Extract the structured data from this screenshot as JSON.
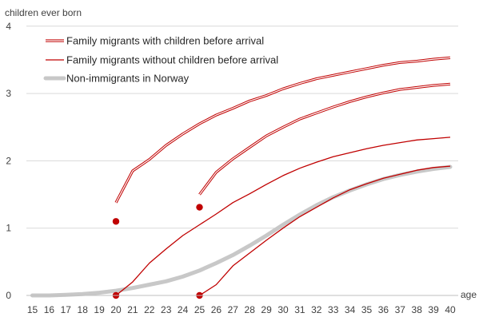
{
  "chart_data": {
    "type": "line",
    "ylabel": "children ever born",
    "xlabel": "age",
    "ylim": [
      0,
      4
    ],
    "yticks": [
      "0",
      "1",
      "2",
      "3",
      "4"
    ],
    "x": [
      15,
      16,
      17,
      18,
      19,
      20,
      21,
      22,
      23,
      24,
      25,
      26,
      27,
      28,
      29,
      30,
      31,
      32,
      33,
      34,
      35,
      36,
      37,
      38,
      39,
      40
    ],
    "xticks": [
      "15",
      "16",
      "17",
      "18",
      "19",
      "20",
      "21",
      "22",
      "23",
      "24",
      "25",
      "26",
      "27",
      "28",
      "29",
      "30",
      "31",
      "32",
      "33",
      "34",
      "35",
      "36",
      "37",
      "38",
      "39",
      "40"
    ],
    "legend": {
      "position": "top-left",
      "entries": [
        {
          "label": "Family migrants with children before arrival",
          "style": "double-line"
        },
        {
          "label": "Family migrants without children before arrival",
          "style": "thin-line"
        },
        {
          "label": "Non-immigrants in Norway",
          "style": "thick-gray"
        }
      ]
    },
    "series": [
      {
        "label": "Non-immigrants in Norway",
        "style": "thick-gray",
        "color": "#c8c8c8",
        "x": [
          15,
          16,
          17,
          18,
          19,
          20,
          21,
          22,
          23,
          24,
          25,
          26,
          27,
          28,
          29,
          30,
          31,
          32,
          33,
          34,
          35,
          36,
          37,
          38,
          39,
          40
        ],
        "y": [
          0.0,
          0.0,
          0.01,
          0.02,
          0.04,
          0.07,
          0.11,
          0.16,
          0.21,
          0.28,
          0.37,
          0.48,
          0.6,
          0.74,
          0.89,
          1.05,
          1.2,
          1.34,
          1.46,
          1.56,
          1.65,
          1.73,
          1.79,
          1.84,
          1.88,
          1.91
        ]
      },
      {
        "label": "Family migrants with children before arrival (arrival at age 20)",
        "style": "double-line",
        "color": "#c00000",
        "x": [
          20,
          21,
          22,
          23,
          24,
          25,
          26,
          27,
          28,
          29,
          30,
          31,
          32,
          33,
          34,
          35,
          36,
          37,
          38,
          39,
          40
        ],
        "y": [
          1.38,
          1.85,
          2.02,
          2.23,
          2.4,
          2.55,
          2.68,
          2.78,
          2.89,
          2.97,
          3.07,
          3.15,
          3.22,
          3.27,
          3.32,
          3.37,
          3.42,
          3.46,
          3.48,
          3.51,
          3.53
        ]
      },
      {
        "label": "Family migrants with children before arrival (arrival at age 25)",
        "style": "double-line",
        "color": "#c00000",
        "x": [
          25,
          26,
          27,
          28,
          29,
          30,
          31,
          32,
          33,
          34,
          35,
          36,
          37,
          38,
          39,
          40
        ],
        "y": [
          1.5,
          1.83,
          2.03,
          2.2,
          2.37,
          2.5,
          2.62,
          2.71,
          2.8,
          2.88,
          2.95,
          3.01,
          3.06,
          3.09,
          3.12,
          3.14
        ]
      },
      {
        "label": "Family migrants without children before arrival (arrival at age 20)",
        "style": "thin-line",
        "color": "#c00000",
        "x": [
          20,
          21,
          22,
          23,
          24,
          25,
          26,
          27,
          28,
          29,
          30,
          31,
          32,
          33,
          34,
          35,
          36,
          37,
          38,
          39,
          40
        ],
        "y": [
          0.0,
          0.2,
          0.48,
          0.69,
          0.89,
          1.05,
          1.21,
          1.38,
          1.51,
          1.65,
          1.78,
          1.89,
          1.98,
          2.06,
          2.12,
          2.18,
          2.23,
          2.27,
          2.31,
          2.33,
          2.35
        ]
      },
      {
        "label": "Family migrants without children before arrival (arrival at age 25)",
        "style": "thin-line",
        "color": "#c00000",
        "x": [
          25,
          26,
          27,
          28,
          29,
          30,
          31,
          32,
          33,
          34,
          35,
          36,
          37,
          38,
          39,
          40
        ],
        "y": [
          0.0,
          0.16,
          0.44,
          0.63,
          0.82,
          1.0,
          1.17,
          1.31,
          1.45,
          1.57,
          1.66,
          1.74,
          1.8,
          1.86,
          1.9,
          1.92
        ]
      }
    ],
    "points": [
      {
        "x": 20,
        "y": 1.1,
        "color": "#c00000"
      },
      {
        "x": 20,
        "y": 0.0,
        "color": "#c00000"
      },
      {
        "x": 25,
        "y": 1.31,
        "color": "#c00000"
      },
      {
        "x": 25,
        "y": 0.0,
        "color": "#c00000"
      }
    ]
  }
}
